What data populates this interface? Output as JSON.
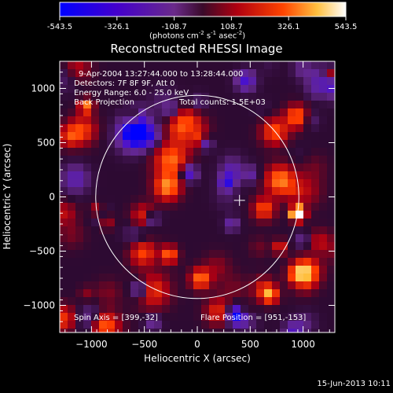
{
  "chart_data": {
    "type": "heatmap",
    "title": "Reconstructed RHESSI Image",
    "xlabel": "Heliocentric X (arcsec)",
    "ylabel": "Heliocentric Y (arcsec)",
    "xlim": [
      -1300,
      1300
    ],
    "ylim": [
      -1250,
      1250
    ],
    "xticks": [
      -1000,
      -500,
      0,
      500,
      1000
    ],
    "yticks": [
      -1000,
      -500,
      0,
      500,
      1000
    ],
    "colorbar": {
      "min": -543.5,
      "max": 543.5,
      "ticks": [
        "-543.5",
        "-326.1",
        "-108.7",
        "108.7",
        "326.1",
        "543.5"
      ],
      "unit_prefix": "(photons cm",
      "unit_exp1": "-2",
      "unit_mid": " s",
      "unit_exp2": "-1",
      "unit_mid2": " asec",
      "unit_exp3": "-2",
      "unit_suffix": ")"
    },
    "annotations": {
      "time_range": "9-Apr-2004 13:27:44.000 to 13:28:44.000",
      "detectors": "Detectors: 7F 8F 9F, Att 0",
      "energy": "Energy Range: 6.0 - 25.0 keV",
      "method": "Back Projection",
      "counts": "Total counts: 1.5E+03",
      "spin_axis": "Spin Axis = [399,-32]",
      "flare_position": "Flare Position = [951,-153]"
    },
    "solar_disk": {
      "center": [
        0,
        0
      ],
      "radius_arcsec": 960
    },
    "marker": {
      "type": "cross",
      "position": [
        399,
        -32
      ]
    },
    "bright_source": [
      951,
      -153
    ],
    "footer_date": "15-Jun-2013 10:11"
  }
}
